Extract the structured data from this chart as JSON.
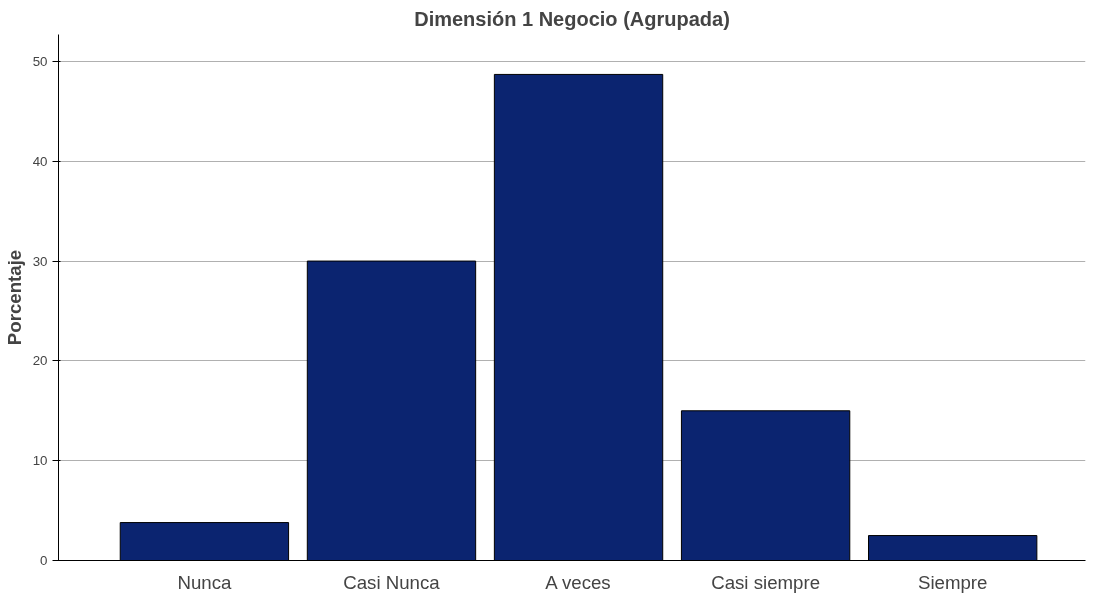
{
  "chart_data": {
    "type": "bar",
    "title": "Dimensión 1 Negocio (Agrupada)",
    "ylabel": "Porcentaje",
    "categories": [
      "Nunca",
      "Casi Nunca",
      "A veces",
      "Casi siempre",
      "Siempre"
    ],
    "values": [
      3.8,
      30.0,
      48.7,
      15.0,
      2.5
    ],
    "color": "#0b2470",
    "ylim": [
      0,
      52.7
    ],
    "yticks": [
      0,
      10,
      20,
      30,
      40,
      50
    ],
    "grid": "y"
  }
}
